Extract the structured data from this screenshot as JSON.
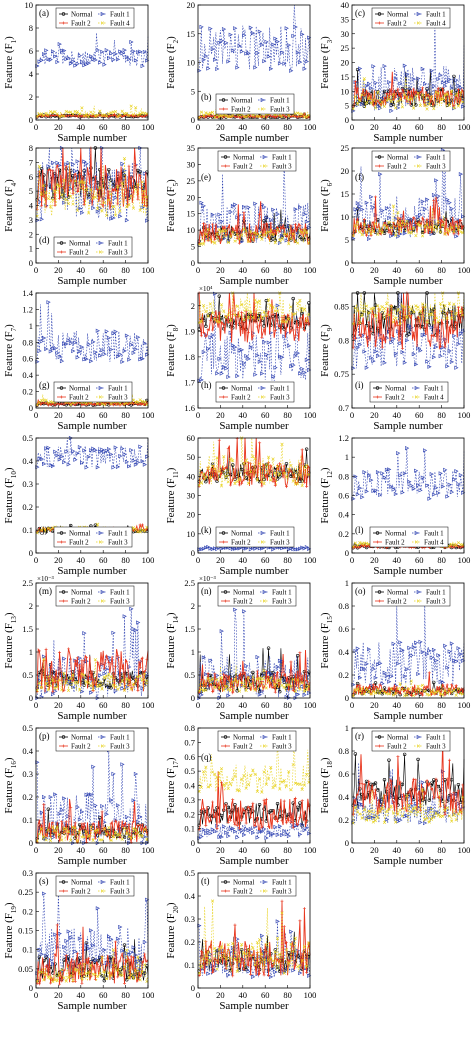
{
  "figure": {
    "x_label": "Sample number",
    "y_label_prefix": "Feature (F",
    "y_label_suffix": ")",
    "colors": {
      "Normal": "#000000",
      "Fault 1": "#2b3fb0",
      "Fault 2": "#e8361e",
      "Fault 3": "#e8d21e",
      "Fault 4": "#e8d21e"
    }
  },
  "chart_data": [
    {
      "type": "line",
      "panel": "(a)",
      "ylabel_index": "1",
      "xlim": [
        0,
        100
      ],
      "xticks": [
        0,
        20,
        40,
        60,
        80,
        100
      ],
      "ylim": [
        0,
        10
      ],
      "yticks": [
        0,
        2,
        4,
        6,
        8,
        10
      ],
      "legend": "top",
      "legend_entries": [
        "Normal",
        "Fault 1",
        "Fault 2",
        "Fault 4"
      ],
      "series": [
        {
          "name": "Normal",
          "mean": 0.35,
          "spread": 0.05
        },
        {
          "name": "Fault 1",
          "mean": 5.4,
          "spread": 0.45
        },
        {
          "name": "Fault 2",
          "mean": 0.35,
          "spread": 0.05
        },
        {
          "name": "Fault 4",
          "mean": 0.55,
          "spread": 0.15
        }
      ]
    },
    {
      "type": "line",
      "panel": "(b)",
      "ylabel_index": "2",
      "xlim": [
        0,
        100
      ],
      "xticks": [
        0,
        20,
        40,
        60,
        80,
        100
      ],
      "ylim": [
        0,
        20
      ],
      "yticks": [
        0,
        5,
        10,
        15,
        20
      ],
      "legend": "bottom",
      "legend_entries": [
        "Normal",
        "Fault 1",
        "Fault 2",
        "Fault 3"
      ],
      "series": [
        {
          "name": "Normal",
          "mean": 0.6,
          "spread": 0.1
        },
        {
          "name": "Fault 1",
          "mean": 12.5,
          "spread": 2.5
        },
        {
          "name": "Fault 2",
          "mean": 0.6,
          "spread": 0.1
        },
        {
          "name": "Fault 3",
          "mean": 0.9,
          "spread": 0.3
        }
      ]
    },
    {
      "type": "line",
      "panel": "(c)",
      "ylabel_index": "3",
      "xlim": [
        0,
        100
      ],
      "xticks": [
        0,
        20,
        40,
        60,
        80,
        100
      ],
      "ylim": [
        0,
        40
      ],
      "yticks": [
        0,
        5,
        10,
        15,
        20,
        25,
        30,
        35,
        40
      ],
      "legend": "top",
      "legend_entries": [
        "Normal",
        "Fault 1",
        "Fault 2",
        "Fault 4"
      ],
      "series": [
        {
          "name": "Normal",
          "mean": 8,
          "spread": 2
        },
        {
          "name": "Fault 1",
          "mean": 11,
          "spread": 5
        },
        {
          "name": "Fault 2",
          "mean": 8,
          "spread": 2
        },
        {
          "name": "Fault 4",
          "mean": 7,
          "spread": 2
        }
      ]
    },
    {
      "type": "line",
      "panel": "(d)",
      "ylabel_index": "4",
      "xlim": [
        0,
        100
      ],
      "xticks": [
        0,
        20,
        40,
        60,
        80,
        100
      ],
      "ylim": [
        0,
        8
      ],
      "yticks": [
        0,
        1,
        2,
        3,
        4,
        5,
        6,
        7,
        8
      ],
      "legend": "bottom",
      "legend_entries": [
        "Normal",
        "Fault 1",
        "Fault 2",
        "Fault 3"
      ],
      "series": [
        {
          "name": "Normal",
          "mean": 5.5,
          "spread": 0.7
        },
        {
          "name": "Fault 1",
          "mean": 5.0,
          "spread": 1.3
        },
        {
          "name": "Fault 2",
          "mean": 5.3,
          "spread": 1.0
        },
        {
          "name": "Fault 3",
          "mean": 4.5,
          "spread": 0.8
        }
      ]
    },
    {
      "type": "line",
      "panel": "(e)",
      "ylabel_index": "5",
      "xlim": [
        0,
        100
      ],
      "xticks": [
        0,
        20,
        40,
        60,
        80,
        100
      ],
      "ylim": [
        0,
        35
      ],
      "yticks": [
        0,
        5,
        10,
        15,
        20,
        25,
        30,
        35
      ],
      "legend": "top",
      "legend_entries": [
        "Normal",
        "Fault 1",
        "Fault 2",
        "Fault 3"
      ],
      "series": [
        {
          "name": "Normal",
          "mean": 9,
          "spread": 1.5
        },
        {
          "name": "Fault 1",
          "mean": 12,
          "spread": 4
        },
        {
          "name": "Fault 2",
          "mean": 9,
          "spread": 2
        },
        {
          "name": "Fault 3",
          "mean": 8,
          "spread": 1.5
        }
      ]
    },
    {
      "type": "line",
      "panel": "(f)",
      "ylabel_index": "6",
      "xlim": [
        0,
        100
      ],
      "xticks": [
        0,
        20,
        40,
        60,
        80,
        100
      ],
      "ylim": [
        0,
        25
      ],
      "yticks": [
        0,
        5,
        10,
        15,
        20,
        25
      ],
      "legend": "top",
      "legend_entries": [
        "Normal",
        "Fault 1",
        "Fault 2",
        "Fault 3"
      ],
      "series": [
        {
          "name": "Normal",
          "mean": 8,
          "spread": 1
        },
        {
          "name": "Fault 1",
          "mean": 10,
          "spread": 3
        },
        {
          "name": "Fault 2",
          "mean": 8,
          "spread": 1.3
        },
        {
          "name": "Fault 3",
          "mean": 7.5,
          "spread": 1
        }
      ]
    },
    {
      "type": "line",
      "panel": "(g)",
      "ylabel_index": "7",
      "xlim": [
        0,
        100
      ],
      "xticks": [
        0,
        20,
        40,
        60,
        80,
        100
      ],
      "ylim": [
        0,
        1.4
      ],
      "yticks": [
        0,
        0.2,
        0.4,
        0.6,
        0.8,
        1,
        1.2,
        1.4
      ],
      "legend": "bottom",
      "legend_entries": [
        "Normal",
        "Fault 1",
        "Fault 2",
        "Fault 3"
      ],
      "series": [
        {
          "name": "Normal",
          "mean": 0.05,
          "spread": 0.01
        },
        {
          "name": "Fault 1",
          "mean": 0.75,
          "spread": 0.12
        },
        {
          "name": "Fault 2",
          "mean": 0.05,
          "spread": 0.01
        },
        {
          "name": "Fault 3",
          "mean": 0.07,
          "spread": 0.02
        }
      ]
    },
    {
      "type": "line",
      "panel": "(h)",
      "ylabel_index": "8",
      "xlim": [
        0,
        100
      ],
      "xticks": [
        0,
        20,
        40,
        60,
        80,
        100
      ],
      "ylim": [
        1.6,
        2.05
      ],
      "yticks": [
        1.6,
        1.7,
        1.8,
        1.9,
        2
      ],
      "y_multiplier": "×10⁴",
      "legend": "bottom",
      "legend_entries": [
        "Normal",
        "Fault 1",
        "Fault 2",
        "Fault 3"
      ],
      "series": [
        {
          "name": "Normal",
          "mean": 1.94,
          "spread": 0.02
        },
        {
          "name": "Fault 1",
          "mean": 1.8,
          "spread": 0.06
        },
        {
          "name": "Fault 2",
          "mean": 1.92,
          "spread": 0.04
        },
        {
          "name": "Fault 3",
          "mean": 1.98,
          "spread": 0.03
        }
      ]
    },
    {
      "type": "line",
      "panel": "(i)",
      "ylabel_index": "9",
      "xlim": [
        0,
        100
      ],
      "xticks": [
        0,
        20,
        40,
        60,
        80,
        100
      ],
      "ylim": [
        0.7,
        0.87
      ],
      "yticks": [
        0.7,
        0.75,
        0.8,
        0.85
      ],
      "legend": "bottom",
      "legend_entries": [
        "Normal",
        "Fault 1",
        "Fault 2",
        "Fault 4"
      ],
      "series": [
        {
          "name": "Normal",
          "mean": 0.83,
          "spread": 0.015
        },
        {
          "name": "Fault 1",
          "mean": 0.79,
          "spread": 0.02
        },
        {
          "name": "Fault 2",
          "mean": 0.82,
          "spread": 0.02
        },
        {
          "name": "Fault 4",
          "mean": 0.84,
          "spread": 0.01
        }
      ]
    },
    {
      "type": "line",
      "panel": "(j)",
      "ylabel_index": "10",
      "xlim": [
        0,
        100
      ],
      "xticks": [
        0,
        20,
        40,
        60,
        80,
        100
      ],
      "ylim": [
        0,
        0.5
      ],
      "yticks": [
        0,
        0.1,
        0.2,
        0.3,
        0.4,
        0.5
      ],
      "legend": "bottom",
      "legend_entries": [
        "Normal",
        "Fault 1",
        "Fault 2",
        "Fault 3"
      ],
      "series": [
        {
          "name": "Normal",
          "mean": 0.1,
          "spread": 0.005
        },
        {
          "name": "Fault 1",
          "mean": 0.42,
          "spread": 0.03
        },
        {
          "name": "Fault 2",
          "mean": 0.1,
          "spread": 0.005
        },
        {
          "name": "Fault 3",
          "mean": 0.1,
          "spread": 0.008
        }
      ]
    },
    {
      "type": "line",
      "panel": "(k)",
      "ylabel_index": "11",
      "xlim": [
        0,
        100
      ],
      "xticks": [
        0,
        20,
        40,
        60,
        80,
        100
      ],
      "ylim": [
        0,
        60
      ],
      "yticks": [
        0,
        10,
        20,
        30,
        40,
        50,
        60
      ],
      "legend": "bottom",
      "legend_entries": [
        "Normal",
        "Fault 1",
        "Fault 2",
        "Fault 3"
      ],
      "series": [
        {
          "name": "Normal",
          "mean": 42,
          "spread": 3
        },
        {
          "name": "Fault 1",
          "mean": 2.5,
          "spread": 0.4
        },
        {
          "name": "Fault 2",
          "mean": 41,
          "spread": 4
        },
        {
          "name": "Fault 3",
          "mean": 43,
          "spread": 5
        }
      ]
    },
    {
      "type": "line",
      "panel": "(l)",
      "ylabel_index": "12",
      "xlim": [
        0,
        100
      ],
      "xticks": [
        0,
        20,
        40,
        60,
        80,
        100
      ],
      "ylim": [
        0,
        1.2
      ],
      "yticks": [
        0,
        0.2,
        0.4,
        0.6,
        0.8,
        1,
        1.2
      ],
      "legend": "bottom",
      "legend_entries": [
        "Normal",
        "Fault 1",
        "Fault 2",
        "Fault 4"
      ],
      "series": [
        {
          "name": "Normal",
          "mean": 0.07,
          "spread": 0.01
        },
        {
          "name": "Fault 1",
          "mean": 0.72,
          "spread": 0.1
        },
        {
          "name": "Fault 2",
          "mean": 0.07,
          "spread": 0.01
        },
        {
          "name": "Fault 4",
          "mean": 0.09,
          "spread": 0.015
        }
      ]
    },
    {
      "type": "line",
      "panel": "(m)",
      "ylabel_index": "13",
      "xlim": [
        0,
        100
      ],
      "xticks": [
        0,
        20,
        40,
        60,
        80,
        100
      ],
      "ylim": [
        0,
        2.5
      ],
      "yticks": [
        0,
        0.5,
        1,
        1.5,
        2,
        2.5
      ],
      "y_multiplier": "×10⁻³",
      "legend": "top",
      "legend_entries": [
        "Normal",
        "Fault 1",
        "Fault 2",
        "Fault 3"
      ],
      "series": [
        {
          "name": "Normal",
          "mean": 0.4,
          "spread": 0.12
        },
        {
          "name": "Fault 1",
          "mean": 0.45,
          "spread": 0.3
        },
        {
          "name": "Fault 2",
          "mean": 0.6,
          "spread": 0.3
        },
        {
          "name": "Fault 3",
          "mean": 0.35,
          "spread": 0.12
        }
      ]
    },
    {
      "type": "line",
      "panel": "(n)",
      "ylabel_index": "14",
      "xlim": [
        0,
        100
      ],
      "xticks": [
        0,
        20,
        40,
        60,
        80,
        100
      ],
      "ylim": [
        0,
        2.5
      ],
      "yticks": [
        0,
        0.5,
        1,
        1.5,
        2,
        2.5
      ],
      "y_multiplier": "×10⁻³",
      "legend": "top",
      "legend_entries": [
        "Normal",
        "Fault 1",
        "Fault 2",
        "Fault 3"
      ],
      "series": [
        {
          "name": "Normal",
          "mean": 0.35,
          "spread": 0.15
        },
        {
          "name": "Fault 1",
          "mean": 0.45,
          "spread": 0.3
        },
        {
          "name": "Fault 2",
          "mean": 0.35,
          "spread": 0.15
        },
        {
          "name": "Fault 3",
          "mean": 0.3,
          "spread": 0.1
        }
      ]
    },
    {
      "type": "line",
      "panel": "(o)",
      "ylabel_index": "15",
      "xlim": [
        0,
        100
      ],
      "xticks": [
        0,
        20,
        40,
        60,
        80,
        100
      ],
      "ylim": [
        0,
        1
      ],
      "yticks": [
        0,
        0.2,
        0.4,
        0.6,
        0.8,
        1
      ],
      "legend": "top",
      "legend_entries": [
        "Normal",
        "Fault 1",
        "Fault 2",
        "Fault 3"
      ],
      "series": [
        {
          "name": "Normal",
          "mean": 0.06,
          "spread": 0.02
        },
        {
          "name": "Fault 1",
          "mean": 0.3,
          "spread": 0.12
        },
        {
          "name": "Fault 2",
          "mean": 0.07,
          "spread": 0.03
        },
        {
          "name": "Fault 3",
          "mean": 0.05,
          "spread": 0.02
        }
      ]
    },
    {
      "type": "line",
      "panel": "(p)",
      "ylabel_index": "16",
      "xlim": [
        0,
        100
      ],
      "xticks": [
        0,
        20,
        40,
        60,
        80,
        100
      ],
      "ylim": [
        0,
        0.5
      ],
      "yticks": [
        0,
        0.1,
        0.2,
        0.3,
        0.4,
        0.5
      ],
      "legend": "top",
      "legend_entries": [
        "Normal",
        "Fault 1",
        "Fault 2",
        "Fault 3"
      ],
      "series": [
        {
          "name": "Normal",
          "mean": 0.05,
          "spread": 0.02
        },
        {
          "name": "Fault 1",
          "mean": 0.1,
          "spread": 0.07
        },
        {
          "name": "Fault 2",
          "mean": 0.05,
          "spread": 0.03
        },
        {
          "name": "Fault 3",
          "mean": 0.04,
          "spread": 0.02
        }
      ]
    },
    {
      "type": "line",
      "panel": "(q)",
      "ylabel_index": "17",
      "xlim": [
        0,
        100
      ],
      "xticks": [
        0,
        20,
        40,
        60,
        80,
        100
      ],
      "ylim": [
        0,
        0.8
      ],
      "yticks": [
        0,
        0.1,
        0.2,
        0.3,
        0.4,
        0.5,
        0.6,
        0.7,
        0.8
      ],
      "legend": "top",
      "legend_entries": [
        "Normal",
        "Fault 1",
        "Fault 2",
        "Fault 3"
      ],
      "series": [
        {
          "name": "Normal",
          "mean": 0.2,
          "spread": 0.05
        },
        {
          "name": "Fault 1",
          "mean": 0.08,
          "spread": 0.03
        },
        {
          "name": "Fault 2",
          "mean": 0.2,
          "spread": 0.07
        },
        {
          "name": "Fault 3",
          "mean": 0.45,
          "spread": 0.06
        }
      ]
    },
    {
      "type": "line",
      "panel": "(r)",
      "ylabel_index": "18",
      "xlim": [
        0,
        100
      ],
      "xticks": [
        0,
        20,
        40,
        60,
        80,
        100
      ],
      "ylim": [
        0,
        1
      ],
      "yticks": [
        0,
        0.2,
        0.4,
        0.6,
        0.8,
        1
      ],
      "legend": "top",
      "legend_entries": [
        "Normal",
        "Fault 1",
        "Fault 2",
        "Fault 3"
      ],
      "series": [
        {
          "name": "Normal",
          "mean": 0.45,
          "spread": 0.08
        },
        {
          "name": "Fault 1",
          "mean": 0.3,
          "spread": 0.08
        },
        {
          "name": "Fault 2",
          "mean": 0.4,
          "spread": 0.1
        },
        {
          "name": "Fault 3",
          "mean": 0.25,
          "spread": 0.05
        }
      ]
    },
    {
      "type": "line",
      "panel": "(s)",
      "ylabel_index": "19",
      "xlim": [
        0,
        100
      ],
      "xticks": [
        0,
        20,
        40,
        60,
        80,
        100
      ],
      "ylim": [
        0,
        0.3
      ],
      "yticks": [
        0,
        0.05,
        0.1,
        0.15,
        0.2,
        0.25,
        0.3
      ],
      "legend": "top",
      "legend_entries": [
        "Normal",
        "Fault 1",
        "Fault 2",
        "Fault 3"
      ],
      "series": [
        {
          "name": "Normal",
          "mean": 0.05,
          "spread": 0.02
        },
        {
          "name": "Fault 1",
          "mean": 0.1,
          "spread": 0.04
        },
        {
          "name": "Fault 2",
          "mean": 0.05,
          "spread": 0.025
        },
        {
          "name": "Fault 3",
          "mean": 0.04,
          "spread": 0.015
        }
      ]
    },
    {
      "type": "line",
      "panel": "(t)",
      "ylabel_index": "20",
      "xlim": [
        0,
        100
      ],
      "xticks": [
        0,
        20,
        40,
        60,
        80,
        100
      ],
      "ylim": [
        0,
        0.5
      ],
      "yticks": [
        0,
        0.1,
        0.2,
        0.3,
        0.4,
        0.5
      ],
      "legend": "top",
      "legend_entries": [
        "Normal",
        "Fault 1",
        "Fault 2",
        "Fault 3"
      ],
      "series": [
        {
          "name": "Normal",
          "mean": 0.12,
          "spread": 0.03
        },
        {
          "name": "Fault 1",
          "mean": 0.11,
          "spread": 0.04
        },
        {
          "name": "Fault 2",
          "mean": 0.13,
          "spread": 0.05
        },
        {
          "name": "Fault 3",
          "mean": 0.14,
          "spread": 0.05
        }
      ]
    }
  ]
}
